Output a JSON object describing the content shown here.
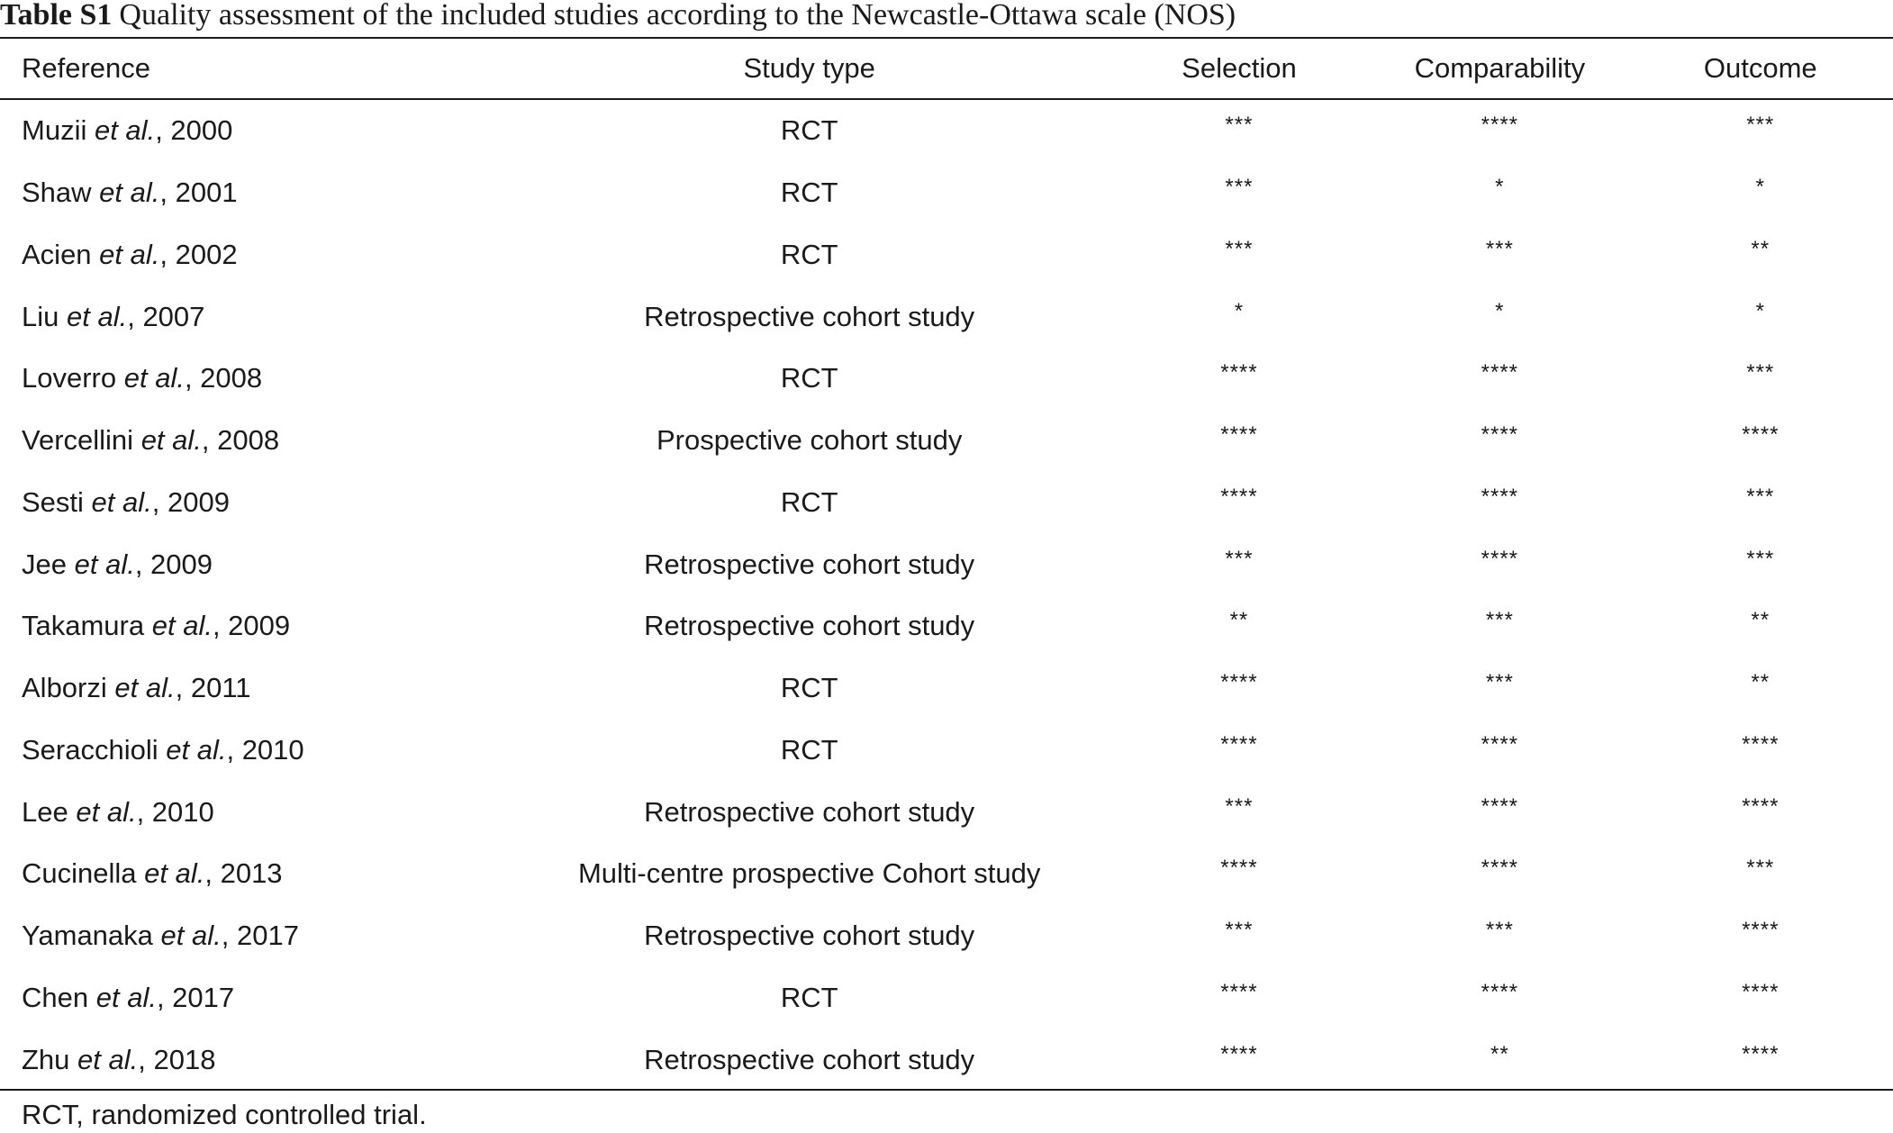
{
  "caption": {
    "label": "Table S1",
    "text": "Quality assessment of the included studies according to the Newcastle-Ottawa scale (NOS)"
  },
  "table": {
    "headers": [
      "Reference",
      "Study type",
      "Selection",
      "Comparability",
      "Outcome"
    ],
    "rows": [
      {
        "name": "Muzii",
        "etal": "et al.",
        "year": ", 2000",
        "type": "RCT",
        "selection": "***",
        "comparability": "****",
        "outcome": "***"
      },
      {
        "name": "Shaw",
        "etal": "et al.",
        "year": ", 2001",
        "type": "RCT",
        "selection": "***",
        "comparability": "*",
        "outcome": "*"
      },
      {
        "name": "Acien",
        "etal": "et al.",
        "year": ", 2002",
        "type": "RCT",
        "selection": "***",
        "comparability": "***",
        "outcome": "**"
      },
      {
        "name": "Liu",
        "etal": "et al.",
        "year": ", 2007",
        "type": "Retrospective cohort study",
        "selection": "*",
        "comparability": "*",
        "outcome": "*"
      },
      {
        "name": "Loverro",
        "etal": "et al.",
        "year": ", 2008",
        "type": "RCT",
        "selection": "****",
        "comparability": "****",
        "outcome": "***"
      },
      {
        "name": "Vercellini",
        "etal": "et al.",
        "year": ", 2008",
        "type": "Prospective cohort study",
        "selection": "****",
        "comparability": "****",
        "outcome": "****"
      },
      {
        "name": "Sesti",
        "etal": "et al.",
        "year": ", 2009",
        "type": "RCT",
        "selection": "****",
        "comparability": "****",
        "outcome": "***"
      },
      {
        "name": "Jee",
        "etal": "et al.",
        "year": ", 2009",
        "type": "Retrospective cohort study",
        "selection": "***",
        "comparability": "****",
        "outcome": "***"
      },
      {
        "name": "Takamura",
        "etal": "et al.",
        "year": ", 2009",
        "type": "Retrospective cohort study",
        "selection": "**",
        "comparability": "***",
        "outcome": "**"
      },
      {
        "name": "Alborzi",
        "etal": "et al.",
        "year": ", 2011",
        "type": "RCT",
        "selection": "****",
        "comparability": "***",
        "outcome": "**"
      },
      {
        "name": "Seracchioli",
        "etal": "et al.",
        "year": ", 2010",
        "type": "RCT",
        "selection": "****",
        "comparability": "****",
        "outcome": "****"
      },
      {
        "name": "Lee",
        "etal": "et al.",
        "year": ", 2010",
        "type": "Retrospective cohort study",
        "selection": "***",
        "comparability": "****",
        "outcome": "****"
      },
      {
        "name": "Cucinella",
        "etal": "et al.",
        "year": ", 2013",
        "type": "Multi-centre prospective Cohort study",
        "selection": "****",
        "comparability": "****",
        "outcome": "***"
      },
      {
        "name": "Yamanaka",
        "etal": "et al.",
        "year": ", 2017",
        "type": "Retrospective cohort study",
        "selection": "***",
        "comparability": "***",
        "outcome": "****"
      },
      {
        "name": "Chen",
        "etal": "et al.",
        "year": ", 2017",
        "type": "RCT",
        "selection": "****",
        "comparability": "****",
        "outcome": "****"
      },
      {
        "name": "Zhu",
        "etal": "et al.",
        "year": ", 2018",
        "type": "Retrospective cohort study",
        "selection": "****",
        "comparability": "**",
        "outcome": "****"
      }
    ]
  },
  "footnote": "RCT, randomized controlled trial."
}
